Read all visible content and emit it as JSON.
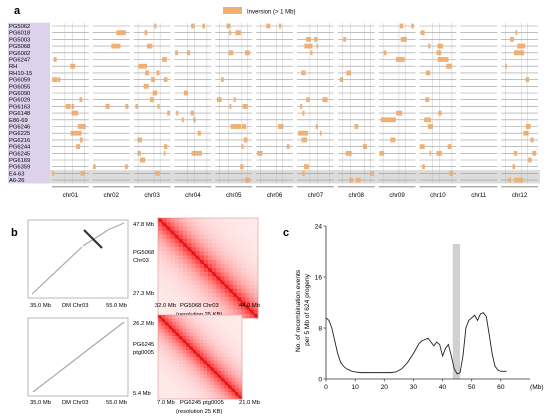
{
  "panel_a": {
    "label": "a",
    "legend_text": "Inversion (> 1 Mb)",
    "colors": {
      "inversion": "#f0b074",
      "line": "#9a9a9a",
      "sample_bg": "#ddd2ec",
      "highlight_bg": "#dcdcdc",
      "tick": "#777777"
    },
    "samples": [
      "PG5062",
      "PG6018",
      "PG5003",
      "PG5068",
      "PG6002",
      "PG6247",
      "RH",
      "RH10-15",
      "PG6059",
      "PG6055",
      "PG6090",
      "PG6029",
      "PG6163",
      "PG6148",
      "E86-69",
      "PG6246",
      "PG6225",
      "PG6216",
      "PG6244",
      "PG6245",
      "PG6169",
      "PG6359",
      "E4-63",
      "A6-26"
    ],
    "highlight_rows": [
      22,
      23
    ],
    "chromosomes": [
      "chr01",
      "chr02",
      "chr03",
      "chr04",
      "chr05",
      "chr06",
      "chr07",
      "chr08",
      "chr09",
      "chr10",
      "chr11",
      "chr12"
    ]
  },
  "panel_b": {
    "label": "b",
    "top": {
      "y_top": "47.8 Mb",
      "y_bottom": "27.3 Mb",
      "x_left": "35.0 Mb",
      "x_mid": "DM Chr03",
      "x_right": "55.0 Mb",
      "assembly": "PG5068",
      "assembly_chr": "Chr03",
      "hic_x_left": "32.0 Mb",
      "hic_x_right": "44.0 Mb",
      "hic_caption": "PG5068 Chr03",
      "hic_resolution": "(resolution 25 KB)"
    },
    "bottom": {
      "y_top": "26.2 Mb",
      "y_bottom": "5.4 Mb",
      "x_left": "35.0 Mb",
      "x_mid": "DM Chr03",
      "x_right": "55.0 Mb",
      "assembly": "PG6245",
      "assembly_chr": "ptg0005",
      "hic_x_left": "7.0 Mb",
      "hic_x_right": "21.0 Mb",
      "hic_caption": "PG6245 ptg0005",
      "hic_resolution": "(resolution 25 KB)"
    }
  },
  "panel_c": {
    "label": "c",
    "chart_data": {
      "type": "line",
      "ylabel": "No. of recombination events per 5 Mb of 624 progeny",
      "xlabel": "(Mb)",
      "xlim": [
        0,
        70
      ],
      "ylim": [
        0,
        24
      ],
      "xticks": [
        0,
        10,
        20,
        30,
        40,
        50,
        60
      ],
      "yticks": [
        0,
        8,
        16,
        24
      ],
      "highlight_region": [
        43.5,
        46
      ],
      "x": [
        0,
        1,
        2,
        3,
        4,
        5,
        6,
        7,
        8,
        9,
        10,
        12,
        14,
        16,
        18,
        20,
        22,
        24,
        26,
        28,
        30,
        31,
        32,
        33,
        34,
        35,
        36,
        37,
        38,
        39,
        40,
        41,
        42,
        43,
        44,
        45,
        46,
        47,
        48,
        49,
        50,
        51,
        52,
        53,
        54,
        55,
        56,
        57,
        58,
        59,
        60,
        61,
        62
      ],
      "values": [
        9.6,
        9.2,
        8.0,
        6.0,
        4.0,
        2.6,
        2.0,
        1.6,
        1.4,
        1.2,
        1.1,
        1.0,
        1.0,
        1.0,
        1.0,
        1.0,
        1.0,
        1.1,
        1.6,
        2.6,
        4.0,
        4.8,
        5.6,
        6.0,
        6.2,
        6.4,
        5.8,
        5.2,
        5.8,
        5.4,
        3.6,
        4.8,
        5.4,
        3.6,
        1.6,
        0.8,
        1.0,
        3.6,
        8.0,
        9.2,
        9.6,
        10.0,
        9.2,
        10.2,
        10.4,
        9.8,
        7.0,
        4.0,
        2.0,
        1.4,
        1.2,
        1.2,
        1.2
      ]
    }
  }
}
